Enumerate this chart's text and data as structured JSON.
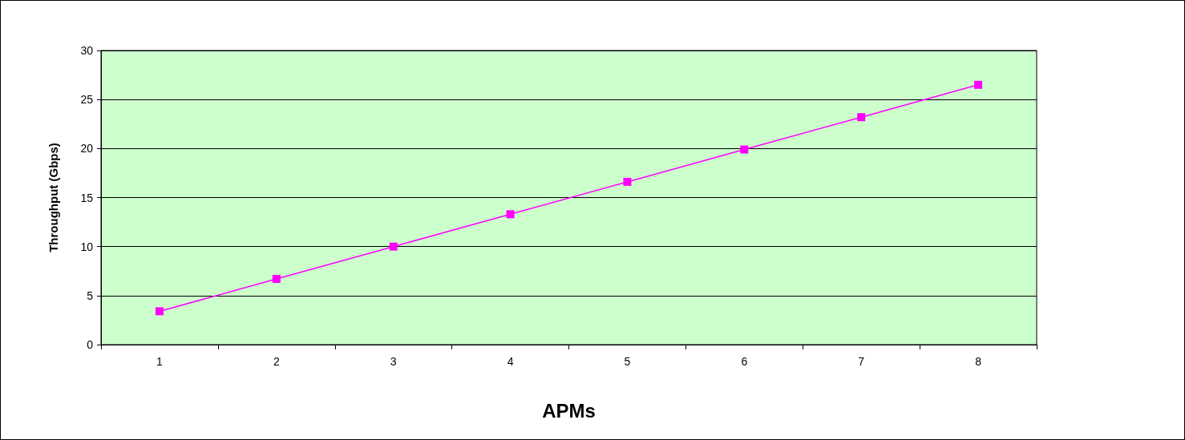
{
  "chart_data": {
    "type": "line",
    "xlabel": "APMs",
    "ylabel": "Throughput (Gbps)",
    "categories": [
      "1",
      "2",
      "3",
      "4",
      "5",
      "6",
      "7",
      "8"
    ],
    "series": [
      {
        "color": "#ff00ff",
        "values": [
          3.4,
          6.7,
          10,
          13.3,
          16.6,
          19.9,
          23.2,
          26.5
        ]
      }
    ],
    "ylim": [
      0,
      30
    ],
    "yticks": [
      0,
      5,
      10,
      15,
      20,
      25,
      30
    ],
    "grid": "y",
    "marker": "square",
    "line_style": "solid"
  }
}
